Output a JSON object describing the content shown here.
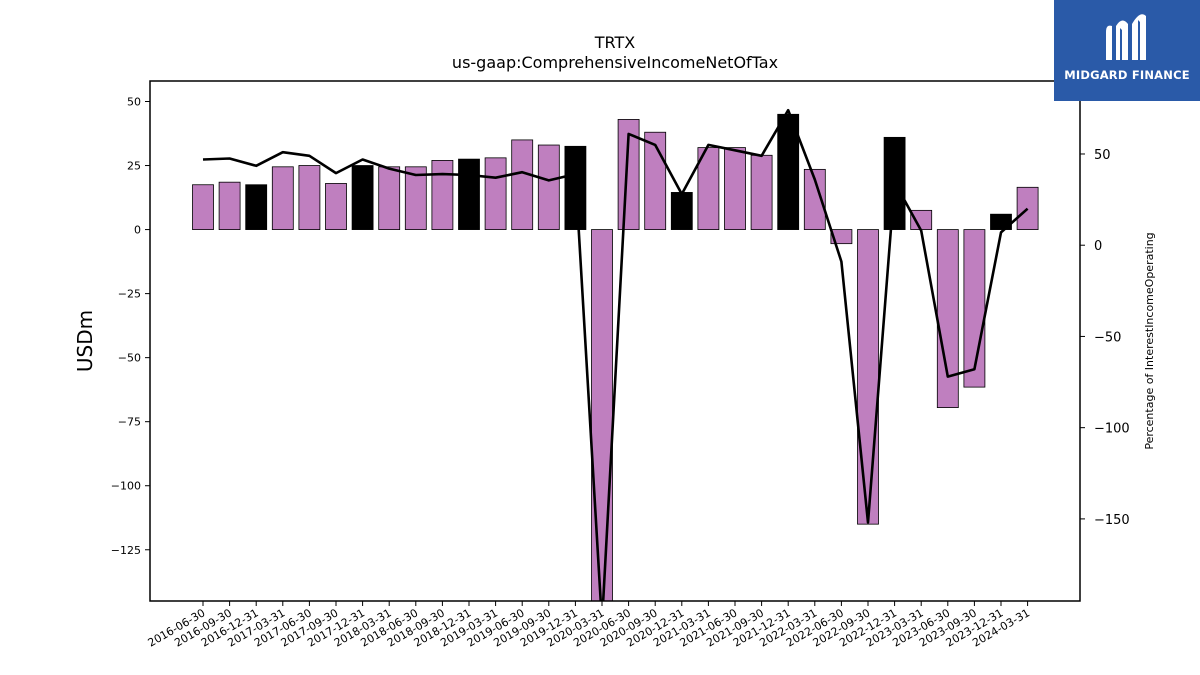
{
  "logo": {
    "text": "MIDGARD FINANCE",
    "icon": "midgard-logo-icon",
    "color": "#2a5aa8"
  },
  "chart_data": {
    "type": "bar",
    "title": "TRTX",
    "subtitle": "us-gaap:ComprehensiveIncomeNetOfTax",
    "ylabel": "USDm",
    "y2label": "Percentage of InterestIncomeOperating",
    "ylim": [
      -145,
      58
    ],
    "y2lim": [
      -195,
      90
    ],
    "yticks": [
      50,
      25,
      0,
      -25,
      -50,
      -75,
      -100,
      -125
    ],
    "y2ticks": [
      50,
      0,
      -50,
      -100,
      -150
    ],
    "categories": [
      "2016-06-30",
      "2016-09-30",
      "2016-12-31",
      "2017-03-31",
      "2017-06-30",
      "2017-09-30",
      "2017-12-31",
      "2018-03-31",
      "2018-06-30",
      "2018-09-30",
      "2018-12-31",
      "2019-03-31",
      "2019-06-30",
      "2019-09-30",
      "2019-12-31",
      "2020-03-31",
      "2020-06-30",
      "2020-09-30",
      "2020-12-31",
      "2021-03-31",
      "2021-06-30",
      "2021-09-30",
      "2021-12-31",
      "2022-03-31",
      "2022-06-30",
      "2022-09-30",
      "2022-12-31",
      "2023-03-31",
      "2023-06-30",
      "2023-09-30",
      "2023-12-31",
      "2024-03-31"
    ],
    "series": [
      {
        "type": "bar",
        "values": [
          17.5,
          18.5,
          17.5,
          24.5,
          25,
          18,
          25,
          24.5,
          24.5,
          27,
          27.5,
          28,
          35,
          33,
          32.5,
          -148,
          43,
          38,
          14.5,
          32,
          32,
          29,
          45,
          23.5,
          -5.5,
          -115,
          36,
          7.5,
          -69.5,
          -61.5,
          6,
          16.5
        ],
        "highlight": [
          false,
          false,
          true,
          false,
          false,
          false,
          true,
          false,
          false,
          false,
          true,
          false,
          false,
          false,
          true,
          false,
          false,
          false,
          true,
          false,
          false,
          false,
          true,
          false,
          false,
          false,
          true,
          false,
          false,
          false,
          true,
          false
        ],
        "color": "#bf7fbf",
        "highlight_color": "#000000"
      },
      {
        "type": "line",
        "axis": "right",
        "values": [
          47,
          47.5,
          43.5,
          51,
          49,
          39.5,
          47,
          42,
          38.5,
          39,
          38.5,
          37,
          40,
          35.5,
          39,
          -207,
          61,
          55,
          28,
          55,
          52,
          49,
          74,
          36,
          -9,
          -152,
          34.5,
          8,
          -72,
          -68,
          7,
          20
        ],
        "color": "#000000"
      }
    ]
  }
}
